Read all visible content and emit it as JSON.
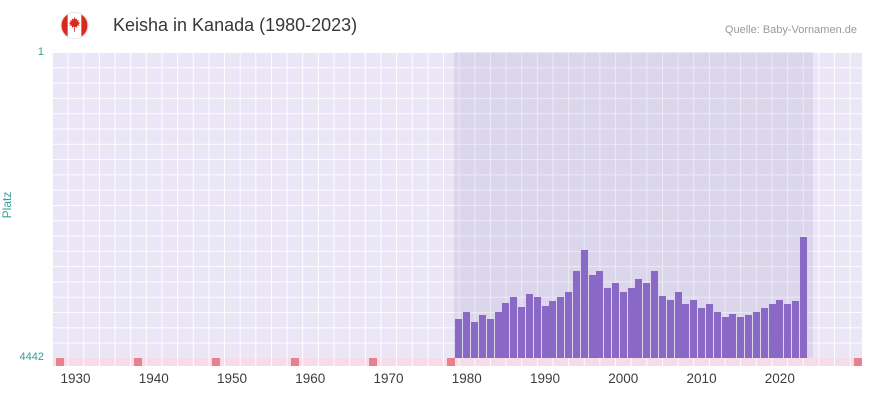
{
  "header": {
    "title": "Keisha in Kanada (1980-2023)",
    "source": "Quelle: Baby-Vornamen.de",
    "flag_icon": "canada-flag-icon"
  },
  "axes": {
    "y_label": "Platz",
    "y_top_tick": "1",
    "y_bottom_tick": "4442"
  },
  "chart_data": {
    "type": "bar",
    "title": "Keisha in Kanada (1980-2023)",
    "ylabel": "Platz",
    "ylim": [
      1,
      4442
    ],
    "y_inverted": true,
    "x_domain": [
      1927,
      2030.5
    ],
    "x_tick_labels": [
      "1930",
      "1940",
      "1950",
      "1960",
      "1970",
      "1980",
      "1990",
      "2000",
      "2010",
      "2020"
    ],
    "x_tick_years": [
      1930,
      1940,
      1950,
      1960,
      1970,
      1980,
      1990,
      2000,
      2010,
      2020
    ],
    "data_region_years": [
      1978.4,
      2024.2
    ],
    "series": [
      {
        "name": "Platz",
        "years": [
          1979,
          1980,
          1981,
          1982,
          1983,
          1984,
          1985,
          1986,
          1987,
          1988,
          1989,
          1990,
          1991,
          1992,
          1993,
          1994,
          1995,
          1996,
          1997,
          1998,
          1999,
          2000,
          2001,
          2002,
          2003,
          2004,
          2005,
          2006,
          2007,
          2008,
          2009,
          2010,
          2011,
          2012,
          2013,
          2014,
          2015,
          2016,
          2017,
          2018,
          2019,
          2020,
          2021,
          2022,
          2023
        ],
        "values": [
          3880,
          3780,
          3920,
          3820,
          3870,
          3780,
          3640,
          3560,
          3700,
          3520,
          3560,
          3680,
          3620,
          3560,
          3480,
          3180,
          2870,
          3240,
          3180,
          3420,
          3360,
          3480,
          3420,
          3300,
          3360,
          3180,
          3540,
          3600,
          3480,
          3660,
          3600,
          3720,
          3660,
          3780,
          3840,
          3800,
          3840,
          3820,
          3780,
          3720,
          3660,
          3600,
          3660,
          3620,
          2680
        ]
      }
    ],
    "no_data_marker_years": [
      1928,
      1938,
      1948,
      1958,
      1968,
      1978,
      2030
    ],
    "grid": true,
    "legend": "none",
    "colors": {
      "bar": "#8a68c6",
      "plot_bg": "#eae6f5",
      "data_band": "rgba(125,105,180,0.13)",
      "grid_line": "#ffffff",
      "axis_teal": "#369e96",
      "marker_red": "#e8808d",
      "marker_band_pink": "#f5dce8",
      "year_label": "#3d3d3d",
      "title": "#383838",
      "source": "#9a9a9a",
      "flag_red": "#d52b1e"
    }
  }
}
